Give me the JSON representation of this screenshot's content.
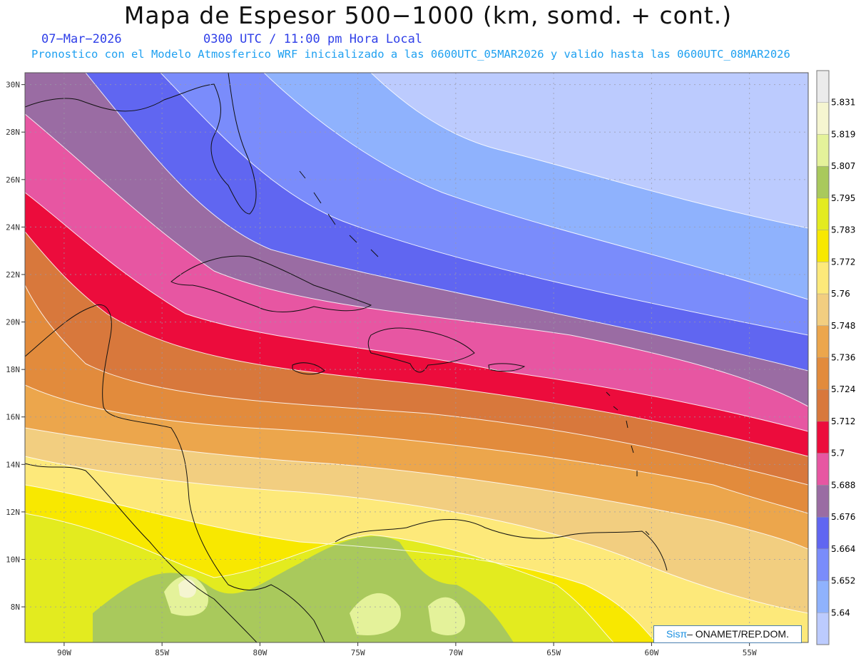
{
  "header": {
    "title": "Mapa de Espesor 500−1000 (km, somd. + cont.)",
    "date": "07−Mar−2026",
    "time": "0300 UTC / 11:00 pm Hora Local",
    "subtitle": "Pronostico con el Modelo Atmosferico WRF inicializado a las 0600UTC_05MAR2026 y valido hasta las  0600UTC_08MAR2026"
  },
  "map": {
    "lon_range": [
      -92,
      -52
    ],
    "lat_range": [
      6.5,
      30.5
    ],
    "lon_ticks": [
      "90W",
      "85W",
      "80W",
      "75W",
      "70W",
      "65W",
      "60W",
      "55W"
    ],
    "lat_ticks": [
      "30N",
      "28N",
      "26N",
      "24N",
      "22N",
      "20N",
      "18N",
      "16N",
      "14N",
      "12N",
      "10N",
      "8N"
    ]
  },
  "colorbar": {
    "labels": [
      "5.831",
      "5.819",
      "5.807",
      "5.795",
      "5.783",
      "5.772",
      "5.76",
      "5.748",
      "5.736",
      "5.724",
      "5.712",
      "5.7",
      "5.688",
      "5.676",
      "5.664",
      "5.652",
      "5.64"
    ],
    "colors": [
      "#ebebeb",
      "#f5f5d0",
      "#e4f29a",
      "#a9c95c",
      "#e3eb1f",
      "#f8e800",
      "#fde97a",
      "#f2ce80",
      "#eca64c",
      "#e28b3c",
      "#d8783c",
      "#ec0c3c",
      "#e756a2",
      "#9a6ca3",
      "#6066f1",
      "#7a8cfb",
      "#8fb2fd",
      "#bccbfe"
    ]
  },
  "credit": {
    "brand": "Sisπ",
    "org": "– ONAMET/REP.DOM."
  }
}
